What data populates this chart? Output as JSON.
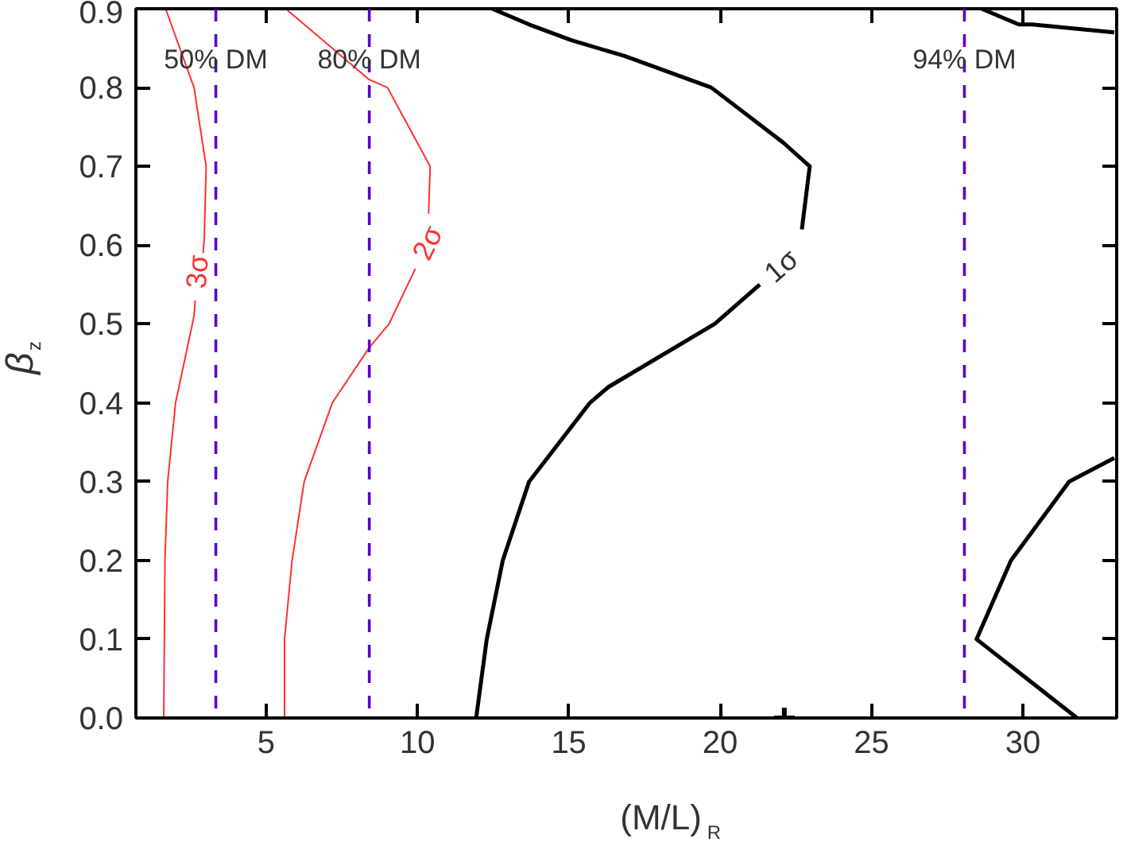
{
  "chart_data": {
    "type": "line",
    "xlabel": "(M/L)$_{R}$",
    "ylabel": "β$_{z}$",
    "xlim": [
      0.7,
      33.1
    ],
    "ylim": [
      0,
      0.9
    ],
    "xticks": [
      5,
      10,
      15,
      20,
      25,
      30
    ],
    "yticks": [
      {
        "value": 0,
        "label": "0.0"
      },
      0.1,
      0.2,
      0.3,
      0.4,
      0.5,
      0.6,
      0.7,
      0.8,
      0.9
    ],
    "series": [
      {
        "name": "3σ",
        "color": "#ff3030",
        "x": [
          1.62,
          1.66,
          1.75,
          2.01,
          2.62,
          2.66
        ],
        "values": [
          0,
          0.2,
          0.3,
          0.4,
          0.51,
          0.53
        ]
      },
      {
        "color": "#ff3030",
        "x": [
          2.92,
          2.96,
          3.02,
          2.62,
          1.68
        ],
        "values": [
          0.59,
          0.61,
          0.7,
          0.8,
          0.9
        ]
      },
      {
        "name": "2σ",
        "color": "#ff3030",
        "x": [
          5.61,
          5.61,
          5.86,
          6.26,
          7.19,
          8.41,
          9.06,
          9.93
        ],
        "values": [
          0,
          0.1,
          0.2,
          0.3,
          0.4,
          0.47,
          0.5,
          0.57
        ]
      },
      {
        "color": "#ff3030",
        "x": [
          10.37,
          10.42,
          9.01,
          8.41,
          5.65
        ],
        "values": [
          0.64,
          0.7,
          0.8,
          0.81,
          0.9
        ]
      },
      {
        "name": "1σ",
        "color": "#000000",
        "x": [
          11.94,
          12.29,
          12.82,
          13.69,
          15.7,
          16.31,
          19.82,
          21.31
        ],
        "values": [
          0,
          0.1,
          0.2,
          0.3,
          0.4,
          0.42,
          0.5,
          0.55
        ]
      },
      {
        "color": "#000000",
        "x": [
          22.7,
          22.96,
          22.09,
          19.71,
          16.84,
          15.09,
          13.69,
          12.47
        ],
        "values": [
          0.62,
          0.7,
          0.73,
          0.8,
          0.84,
          0.86,
          0.88,
          0.9
        ]
      },
      {
        "color": "#000000",
        "x": [
          28.64,
          29.87,
          30.31,
          33.02
        ],
        "values": [
          0.9,
          0.88,
          0.88,
          0.87
        ]
      },
      {
        "color": "#000000",
        "x": [
          31.79,
          28.47,
          29.61,
          31.53,
          33.02
        ],
        "values": [
          0,
          0.1,
          0.2,
          0.3,
          0.33
        ]
      },
      {
        "type": "scatter",
        "marker": "cross",
        "color": "#000000",
        "x": [
          22.12
        ],
        "values": [
          0
        ]
      }
    ],
    "ref_lines": [
      {
        "axis": "x",
        "value": 3.34,
        "label": "50% DM",
        "color": "#5a00c8",
        "line_style": "dashed"
      },
      {
        "axis": "x",
        "value": 8.41,
        "label": "80% DM",
        "color": "#5a00c8",
        "line_style": "dashed"
      },
      {
        "axis": "x",
        "value": 28.07,
        "label": "94% DM",
        "color": "#5a00c8",
        "line_style": "dashed"
      }
    ]
  }
}
